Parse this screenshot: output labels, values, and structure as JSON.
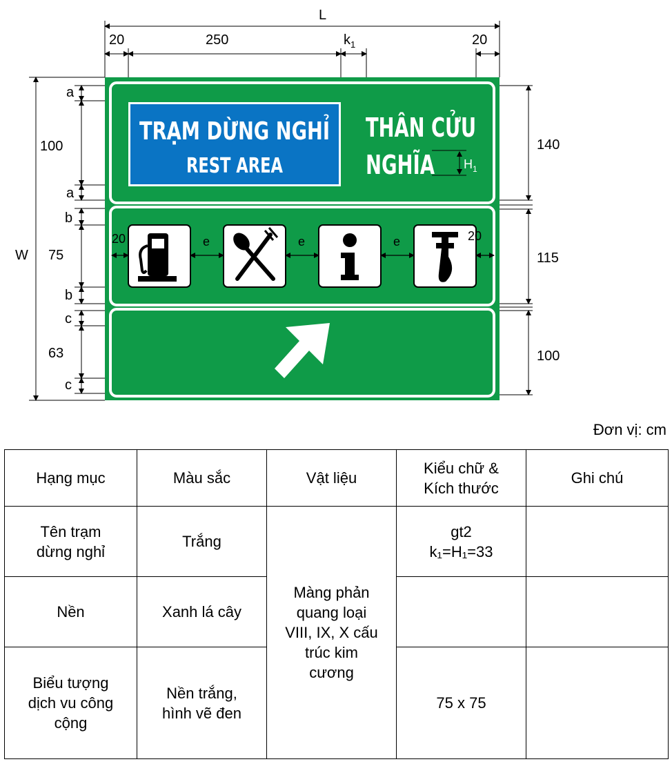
{
  "diagram": {
    "dims_top": {
      "L": "L",
      "left_margin": "20",
      "box_width": "250",
      "k1": "k",
      "k1_sub": "1",
      "right_margin": "20"
    },
    "dims_left": {
      "W": "W",
      "a_top": "a",
      "row1": "100",
      "a_bottom": "a",
      "b_top": "b",
      "row2": "75",
      "b_bottom": "b",
      "c_top": "c",
      "row3": "63",
      "c_bottom": "c"
    },
    "dims_right": {
      "panel1": "140",
      "panel2": "115",
      "panel3": "100"
    },
    "sign": {
      "box_title": "TRẠM DỪNG NGHỈ",
      "box_subtitle": "REST AREA",
      "name_line1": "THÂN CỬU",
      "name_line2": "NGHĨA",
      "h1": "H",
      "h1_sub": "1",
      "icon_gap_left": "20",
      "icon_gap_right": "20",
      "icon_spacing": "e",
      "icons": [
        "fuel-pump-icon",
        "spoon-fork-icon",
        "info-icon",
        "wrench-icon"
      ]
    },
    "colors": {
      "green": "#0f9b48",
      "blue": "#0a74c4",
      "white": "#ffffff",
      "black": "#000000"
    }
  },
  "unit_label": "Đơn vị: cm",
  "table": {
    "headers": [
      "Hạng mục",
      "Màu sắc",
      "Vật liệu",
      "Kiểu chữ & Kích thước",
      "Ghi chú"
    ],
    "header_lines": {
      "col4_line1": "Kiểu chữ &",
      "col4_line2": "Kích thước"
    },
    "rows": [
      {
        "item_l1": "Tên trạm",
        "item_l2": "dừng nghỉ",
        "color": "Trắng",
        "font_l1": "gt2",
        "font_l2": "k₁=H₁=33",
        "note": ""
      },
      {
        "item_l1": "Nền",
        "color": "Xanh lá cây",
        "font": "",
        "note": ""
      },
      {
        "item_l1": "Biểu tượng",
        "item_l2": "dịch vu công",
        "item_l3": "cộng",
        "color_l1": "Nền trắng,",
        "color_l2": "hình vẽ đen",
        "font": "75 x 75",
        "note": ""
      }
    ],
    "material_lines": [
      "Màng phản",
      "quang loại",
      "VIII, IX, X cấu",
      "trúc kim",
      "cương"
    ]
  }
}
